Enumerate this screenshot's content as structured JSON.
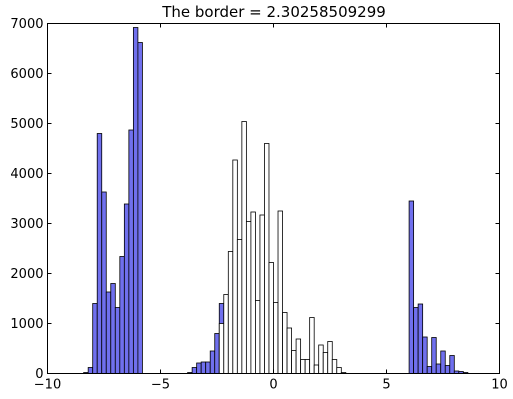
{
  "chart_data": {
    "type": "bar",
    "title": "The border = 2.30258509299",
    "xlabel": "",
    "ylabel": "",
    "xlim": [
      -10,
      10
    ],
    "ylim": [
      0,
      7000
    ],
    "grid": false,
    "bin_width": 0.2,
    "x_ticks": [
      -10,
      -5,
      0,
      5,
      10
    ],
    "x_tick_labels": [
      "−10",
      "−5",
      "0",
      "5",
      "10"
    ],
    "y_ticks": [
      0,
      1000,
      2000,
      3000,
      4000,
      5000,
      6000,
      7000
    ],
    "y_tick_labels": [
      "0",
      "1000",
      "2000",
      "3000",
      "4000",
      "5000",
      "6000",
      "7000"
    ],
    "series": [
      {
        "color": "#7070ee",
        "bins": [
          {
            "x": -8.4,
            "y": 20
          },
          {
            "x": -8.2,
            "y": 120
          },
          {
            "x": -8.0,
            "y": 1400
          },
          {
            "x": -7.8,
            "y": 4800
          },
          {
            "x": -7.6,
            "y": 3630
          },
          {
            "x": -7.4,
            "y": 1630
          },
          {
            "x": -7.2,
            "y": 1800
          },
          {
            "x": -7.0,
            "y": 1320
          },
          {
            "x": -6.8,
            "y": 2340
          },
          {
            "x": -6.6,
            "y": 3390
          },
          {
            "x": -6.4,
            "y": 4870
          },
          {
            "x": -6.2,
            "y": 6920
          },
          {
            "x": -6.0,
            "y": 6620
          },
          {
            "x": -3.8,
            "y": 20
          },
          {
            "x": -3.6,
            "y": 120
          },
          {
            "x": -3.4,
            "y": 210
          },
          {
            "x": -3.2,
            "y": 230
          },
          {
            "x": -3.0,
            "y": 230
          },
          {
            "x": -2.8,
            "y": 450
          },
          {
            "x": -2.6,
            "y": 800
          },
          {
            "x": -2.4,
            "y": 1400
          },
          {
            "x": -2.2,
            "y": 710
          },
          {
            "x": 2.0,
            "y": 50
          },
          {
            "x": 2.2,
            "y": 110
          },
          {
            "x": 2.4,
            "y": 210
          },
          {
            "x": 2.6,
            "y": 30
          },
          {
            "x": 6.0,
            "y": 3450
          },
          {
            "x": 6.2,
            "y": 1320
          },
          {
            "x": 6.4,
            "y": 1390
          },
          {
            "x": 6.6,
            "y": 730
          },
          {
            "x": 6.8,
            "y": 140
          },
          {
            "x": 7.0,
            "y": 720
          },
          {
            "x": 7.2,
            "y": 190
          },
          {
            "x": 7.4,
            "y": 450
          },
          {
            "x": 7.6,
            "y": 160
          },
          {
            "x": 7.8,
            "y": 360
          },
          {
            "x": 8.0,
            "y": 50
          },
          {
            "x": 8.2,
            "y": 40
          },
          {
            "x": 8.4,
            "y": 20
          }
        ]
      },
      {
        "color": "#ffffff",
        "bins": [
          {
            "x": -2.4,
            "y": 1000
          },
          {
            "x": -2.2,
            "y": 1580
          },
          {
            "x": -2.0,
            "y": 2440
          },
          {
            "x": -1.8,
            "y": 4270
          },
          {
            "x": -1.6,
            "y": 2680
          },
          {
            "x": -1.4,
            "y": 5040
          },
          {
            "x": -1.2,
            "y": 3040
          },
          {
            "x": -1.0,
            "y": 3230
          },
          {
            "x": -0.8,
            "y": 1460
          },
          {
            "x": -0.6,
            "y": 3170
          },
          {
            "x": -0.4,
            "y": 4600
          },
          {
            "x": -0.2,
            "y": 2220
          },
          {
            "x": 0.0,
            "y": 1420
          },
          {
            "x": 0.2,
            "y": 3250
          },
          {
            "x": 0.4,
            "y": 1220
          },
          {
            "x": 0.6,
            "y": 910
          },
          {
            "x": 0.8,
            "y": 460
          },
          {
            "x": 1.0,
            "y": 690
          },
          {
            "x": 1.2,
            "y": 280
          },
          {
            "x": 1.4,
            "y": 280
          },
          {
            "x": 1.6,
            "y": 1120
          },
          {
            "x": 1.8,
            "y": 170
          },
          {
            "x": 2.0,
            "y": 570
          },
          {
            "x": 2.2,
            "y": 420
          },
          {
            "x": 2.4,
            "y": 640
          },
          {
            "x": 2.6,
            "y": 280
          },
          {
            "x": 2.8,
            "y": 120
          },
          {
            "x": 3.0,
            "y": 20
          }
        ]
      }
    ]
  }
}
